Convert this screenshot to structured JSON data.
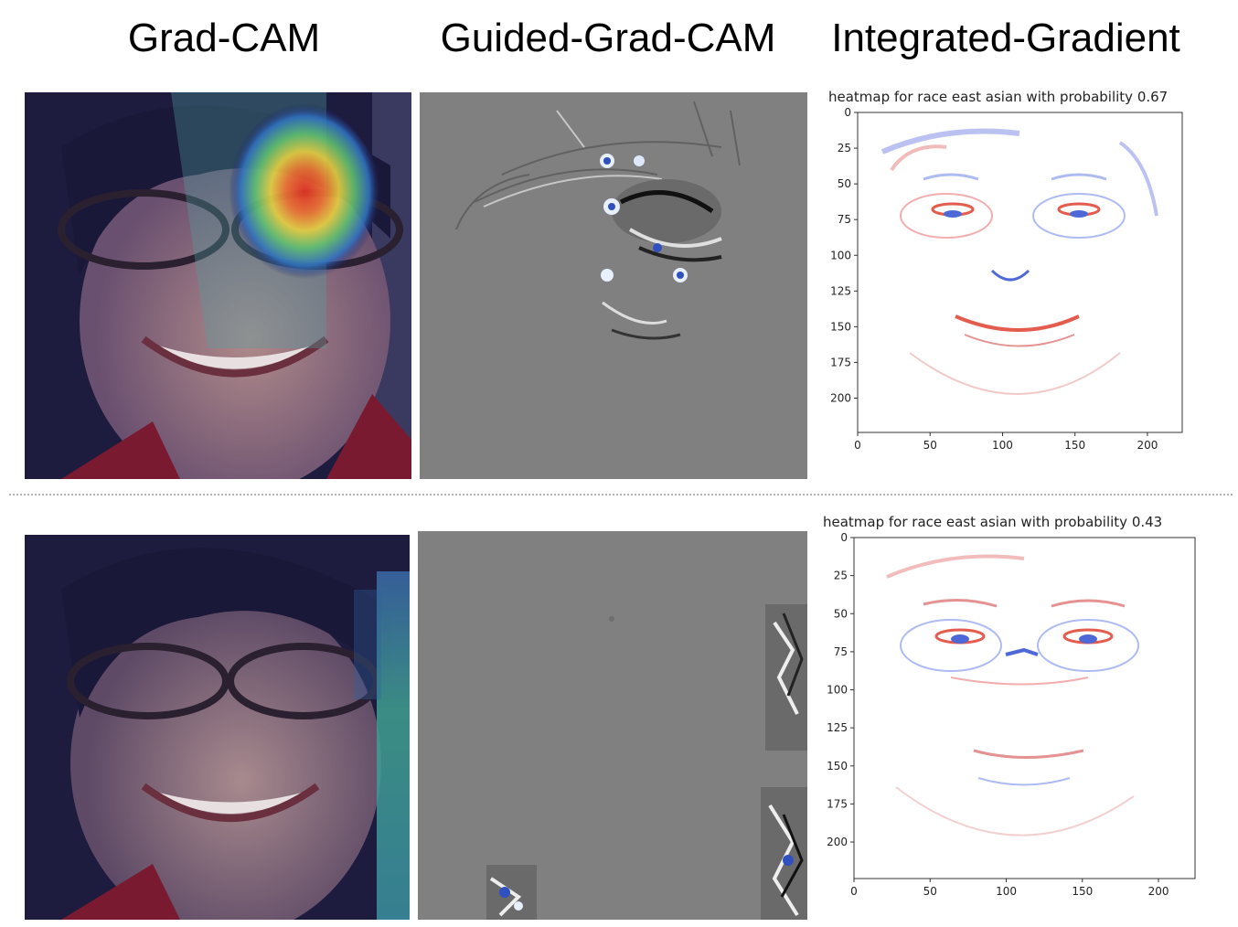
{
  "headers": {
    "gradcam": "Grad-CAM",
    "guided": "Guided-Grad-CAM",
    "integrated": "Integrated-Gradient"
  },
  "rows": [
    {
      "ig_title": "heatmap for race east asian with probability 0.67",
      "ig_plot": {
        "xticks": [
          "0",
          "50",
          "100",
          "150",
          "200"
        ],
        "yticks": [
          "0",
          "25",
          "50",
          "75",
          "100",
          "125",
          "150",
          "175",
          "200"
        ]
      }
    },
    {
      "ig_title": "heatmap for race east asian with probability 0.43",
      "ig_plot": {
        "xticks": [
          "0",
          "50",
          "100",
          "150",
          "200"
        ],
        "yticks": [
          "0",
          "25",
          "50",
          "75",
          "100",
          "125",
          "150",
          "175",
          "200"
        ]
      }
    }
  ],
  "colors": {
    "saliency_gray": "#808080",
    "ig_positive": "#e04030",
    "ig_negative": "#3050d0"
  }
}
